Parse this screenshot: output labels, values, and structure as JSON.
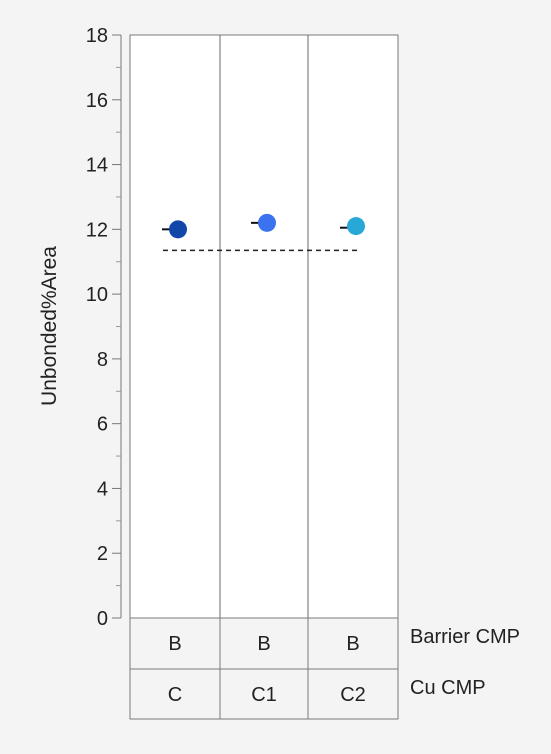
{
  "chart_data": {
    "type": "scatter",
    "title": "",
    "ylabel": "Unbonded%Area",
    "ylim": [
      0,
      18
    ],
    "y_ticks": [
      0,
      2,
      4,
      6,
      8,
      10,
      12,
      14,
      16,
      18
    ],
    "grid": false,
    "reference_line": {
      "style": "dashed",
      "y": 11.35
    },
    "x_factors": [
      {
        "name": "Barrier CMP",
        "levels": [
          "B",
          "B",
          "B"
        ]
      },
      {
        "name": "Cu CMP",
        "levels": [
          "C",
          "C1",
          "C2"
        ]
      }
    ],
    "series": [
      {
        "group": "C",
        "y": 12.0,
        "mean": 12.0,
        "color": "#1147a8"
      },
      {
        "group": "C1",
        "y": 12.2,
        "mean": 12.2,
        "color": "#3a72f0"
      },
      {
        "group": "C2",
        "y": 12.1,
        "mean": 12.05,
        "color": "#27a8d6"
      }
    ]
  },
  "colors": {
    "background": "#f4f4f4",
    "plot_background": "#ffffff",
    "frame": "#7a7a7a",
    "text": "#222222"
  }
}
